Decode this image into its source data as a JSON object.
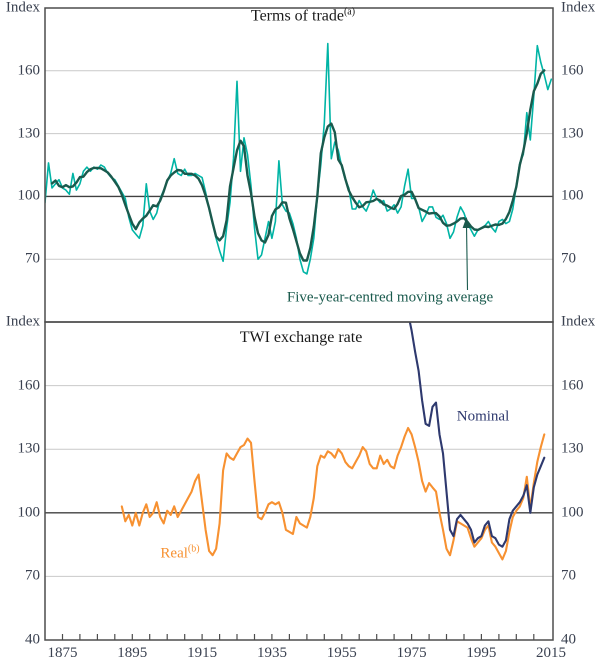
{
  "figure": {
    "top_panel_title": "Terms of trade",
    "top_panel_title_note": "(a)",
    "bottom_panel_title": "TWI exchange rate",
    "annotation_moving_average": "Five-year-centred moving average",
    "label_nominal": "Nominal",
    "label_real": "Real",
    "label_real_note": "(b)"
  },
  "axes": {
    "unit_label": "Index",
    "y_tick_labels": [
      160,
      130,
      100,
      70
    ],
    "y_bottom_label": 40,
    "x_tick_labels": [
      1875,
      1895,
      1915,
      1935,
      1955,
      1975,
      1995,
      2015
    ],
    "x_minor_tick_step": 5
  },
  "colors": {
    "terms_of_trade": "#00b4a5",
    "moving_average": "#1a5a4d",
    "nominal": "#2e396e",
    "real": "#f79131",
    "gridline": "#c9c9c9",
    "baseline_100": "#404040",
    "frame": "#4d4d4d",
    "tick_text": "#3a4150"
  },
  "chart_data": [
    {
      "type": "line",
      "title": "Terms of trade",
      "title_note": "(a)",
      "ylabel": "Index",
      "ylim": [
        40,
        190
      ],
      "xlim": [
        1870,
        2015.5
      ],
      "y_gridlines": [
        70,
        130,
        160
      ],
      "y_baseline": 100,
      "grid": true,
      "legend_position": "none",
      "annotation": {
        "text": "Five-year-centred moving average",
        "arrow_points_to_year": 1991
      },
      "series": [
        {
          "name": "Terms of trade",
          "color": "#00b4a5",
          "start_year": 1870,
          "values": [
            97,
            116,
            104,
            106,
            108,
            104,
            103,
            101,
            111,
            103,
            106,
            112,
            114,
            112,
            114,
            113,
            115,
            114,
            111,
            109,
            108,
            105,
            102,
            99,
            90,
            84,
            82,
            80,
            86,
            106,
            93,
            89,
            92,
            99,
            103,
            107,
            111,
            118,
            111,
            110,
            113,
            110,
            110,
            111,
            110,
            109,
            102,
            94,
            87,
            80,
            74,
            69,
            85,
            97,
            118,
            155,
            112,
            128,
            120,
            105,
            85,
            70,
            72,
            80,
            88,
            80,
            88,
            117,
            96,
            93,
            92,
            87,
            80,
            70,
            64,
            63,
            70,
            80,
            100,
            115,
            135,
            173,
            118,
            126,
            122,
            114,
            108,
            104,
            94,
            94,
            98,
            95,
            93,
            97,
            103,
            99,
            97,
            98,
            93,
            94,
            96,
            92,
            95,
            105,
            113,
            99,
            99,
            95,
            88,
            91,
            95,
            95,
            90,
            89,
            91,
            87,
            80,
            83,
            90,
            95,
            92,
            87,
            84,
            81,
            84,
            85,
            86,
            88,
            85,
            83,
            88,
            89,
            87,
            88,
            94,
            105,
            116,
            120,
            140,
            127,
            148,
            172,
            164,
            158,
            151,
            156
          ]
        },
        {
          "name": "Five-year-centred moving average",
          "color": "#1a5a4d",
          "derived_from": "Terms of trade",
          "window": 5
        }
      ]
    },
    {
      "type": "line",
      "title": "TWI exchange rate",
      "ylabel": "Index",
      "ylim": [
        40,
        190
      ],
      "xlim": [
        1870,
        2015.5
      ],
      "y_gridlines": [
        70,
        130,
        160
      ],
      "y_baseline": 100,
      "grid": true,
      "legend_position": "none",
      "series": [
        {
          "name": "Nominal",
          "color": "#2e396e",
          "start_year": 1974,
          "values": [
            194,
            186,
            176,
            167,
            153,
            142,
            141,
            150,
            152,
            137,
            128,
            110,
            92,
            89,
            97,
            99,
            97,
            95,
            92,
            86,
            88,
            89,
            94,
            96,
            89,
            88,
            85,
            84,
            87,
            97,
            101,
            103,
            105,
            108,
            113,
            100,
            112,
            118,
            122,
            126
          ]
        },
        {
          "name": "Real",
          "color": "#f79131",
          "start_year": 1892,
          "values": [
            103,
            96,
            99,
            94,
            100,
            94,
            100,
            104,
            98,
            100,
            105,
            98,
            95,
            101,
            99,
            103,
            98,
            101,
            104,
            107,
            110,
            115,
            118,
            105,
            92,
            82,
            80,
            83,
            95,
            120,
            128,
            126,
            125,
            128,
            131,
            132,
            135,
            133,
            115,
            98,
            97,
            100,
            104,
            105,
            104,
            105,
            100,
            92,
            91,
            90,
            98,
            95,
            94,
            93,
            98,
            107,
            122,
            127,
            126,
            129,
            128,
            126,
            130,
            128,
            124,
            122,
            121,
            124,
            127,
            131,
            129,
            123,
            121,
            121,
            127,
            123,
            125,
            122,
            121,
            127,
            131,
            136,
            140,
            137,
            131,
            124,
            115,
            110,
            114,
            112,
            110,
            100,
            92,
            83,
            80,
            87,
            96,
            95,
            94,
            93,
            88,
            84,
            86,
            88,
            92,
            94,
            86,
            84,
            81,
            78,
            82,
            91,
            98,
            101,
            103,
            107,
            117,
            102,
            114,
            124,
            131,
            137
          ]
        }
      ]
    }
  ]
}
